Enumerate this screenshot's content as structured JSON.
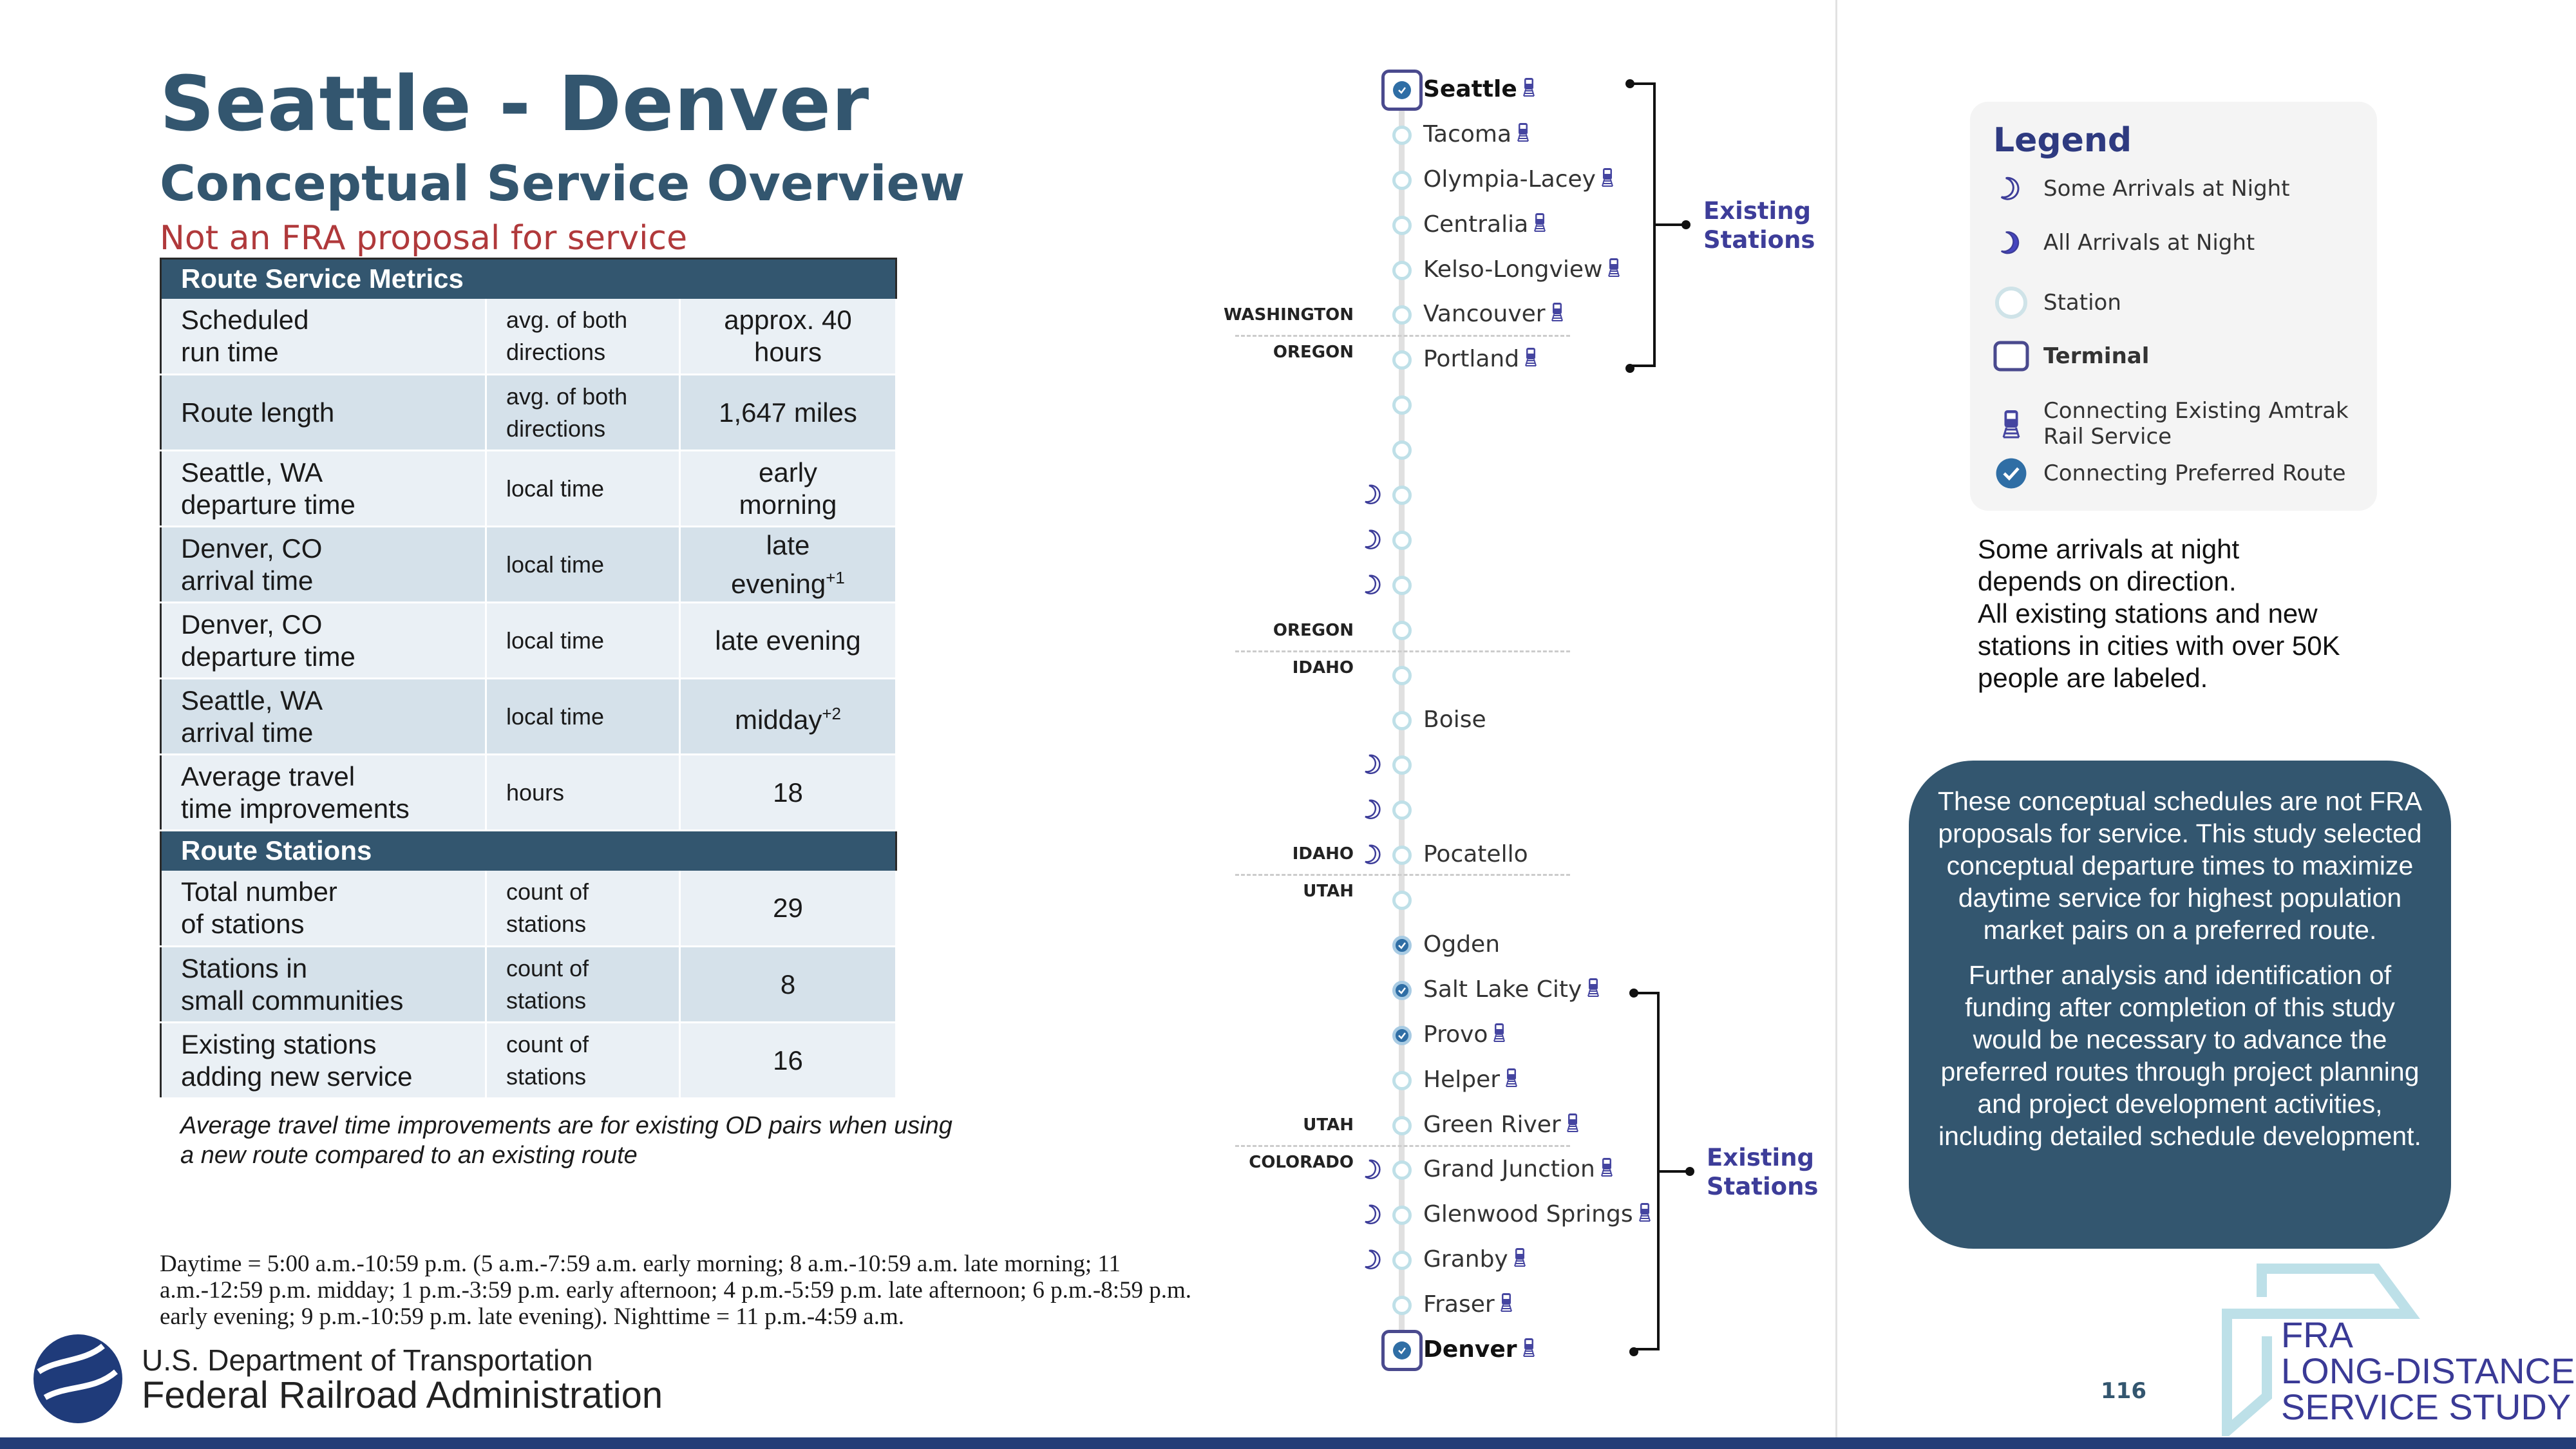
{
  "header": {
    "title": "Seattle - Denver",
    "subtitle": "Conceptual Service Overview",
    "disclaimer": "Not an FRA proposal for service"
  },
  "table": {
    "sections": [
      {
        "heading": "Route Service Metrics",
        "rows": [
          {
            "metric": "Scheduled\nrun time",
            "unit": "avg. of both\ndirections",
            "value": "approx. 40\nhours",
            "sup": ""
          },
          {
            "metric": "Route length",
            "unit": "avg. of both\ndirections",
            "value": "1,647 miles",
            "sup": ""
          },
          {
            "metric": "Seattle, WA\ndeparture time",
            "unit": "local time",
            "value": "early\nmorning",
            "sup": ""
          },
          {
            "metric": "Denver, CO\narrival time",
            "unit": "local time",
            "value": "late\nevening",
            "sup": "+1"
          },
          {
            "metric": "Denver, CO\ndeparture time",
            "unit": "local time",
            "value": "late evening",
            "sup": ""
          },
          {
            "metric": "Seattle, WA\narrival time",
            "unit": "local time",
            "value": "midday",
            "sup": "+2"
          },
          {
            "metric": "Average travel\ntime improvements",
            "unit": "hours",
            "value": "18",
            "sup": ""
          }
        ]
      },
      {
        "heading": "Route Stations",
        "rows": [
          {
            "metric": "Total number\nof stations",
            "unit": "count of\nstations",
            "value": "29",
            "sup": ""
          },
          {
            "metric": "Stations in\nsmall communities",
            "unit": "count of\nstations",
            "value": "8",
            "sup": ""
          },
          {
            "metric": "Existing stations\nadding new service",
            "unit": "count of\nstations",
            "value": "16",
            "sup": ""
          }
        ]
      }
    ],
    "footnote": "Average travel time improvements are for existing OD pairs when using a new route compared to an existing route"
  },
  "daytime_note": "Daytime = 5:00 a.m.-10:59 p.m. (5 a.m.-7:59 a.m. early morning; 8 a.m.-10:59 a.m. late morning; 11 a.m.-12:59 p.m. midday; 1 p.m.-3:59 p.m. early afternoon; 4 p.m.-5:59 p.m. late afternoon; 6 p.m.-8:59 p.m. early evening; 9 p.m.-10:59 p.m. late evening).  Nighttime = 11 p.m.-4:59 a.m.",
  "agency": {
    "line1": "U.S. Department of Transportation",
    "line2": "Federal Railroad Administration"
  },
  "route": {
    "stations": [
      {
        "name": "Seattle",
        "terminal": true,
        "preferred": true,
        "amtrak": true,
        "night": ""
      },
      {
        "name": "Tacoma",
        "amtrak": true,
        "night": ""
      },
      {
        "name": "Olympia-Lacey",
        "amtrak": true,
        "night": ""
      },
      {
        "name": "Centralia",
        "amtrak": true,
        "night": ""
      },
      {
        "name": "Kelso-Longview",
        "amtrak": true,
        "night": ""
      },
      {
        "name": "Vancouver",
        "amtrak": true,
        "night": ""
      },
      {
        "name": "Portland",
        "amtrak": true,
        "night": ""
      },
      {
        "name": "",
        "night": ""
      },
      {
        "name": "",
        "night": ""
      },
      {
        "name": "",
        "night": "some"
      },
      {
        "name": "",
        "night": "some"
      },
      {
        "name": "",
        "night": "some"
      },
      {
        "name": "",
        "night": ""
      },
      {
        "name": "",
        "night": ""
      },
      {
        "name": "Boise",
        "night": ""
      },
      {
        "name": "",
        "night": "some"
      },
      {
        "name": "",
        "night": "some"
      },
      {
        "name": "Pocatello",
        "night": "some"
      },
      {
        "name": "",
        "night": ""
      },
      {
        "name": "Ogden",
        "preferred": true,
        "night": ""
      },
      {
        "name": "Salt Lake City",
        "preferred": true,
        "amtrak": true,
        "night": ""
      },
      {
        "name": "Provo",
        "preferred": true,
        "amtrak": true,
        "night": ""
      },
      {
        "name": "Helper",
        "amtrak": true,
        "night": ""
      },
      {
        "name": "Green River",
        "amtrak": true,
        "night": ""
      },
      {
        "name": "Grand Junction",
        "amtrak": true,
        "night": "some"
      },
      {
        "name": "Glenwood Springs",
        "amtrak": true,
        "night": "some"
      },
      {
        "name": "Granby",
        "amtrak": true,
        "night": "some"
      },
      {
        "name": "Fraser",
        "amtrak": true,
        "night": ""
      },
      {
        "name": "Denver",
        "terminal": true,
        "preferred": true,
        "amtrak": true,
        "night": ""
      }
    ],
    "state_borders": [
      {
        "above": "WASHINGTON",
        "below": "OREGON"
      },
      {
        "above": "OREGON",
        "below": "IDAHO"
      },
      {
        "above": "IDAHO",
        "below": "UTAH"
      },
      {
        "above": "UTAH",
        "below": "COLORADO"
      }
    ],
    "brackets": [
      {
        "label": "Existing\nStations"
      },
      {
        "label": "Existing\nStations"
      }
    ]
  },
  "legend": {
    "title": "Legend",
    "items": [
      {
        "icon": "crescent-moon-outline-icon",
        "label": "Some Arrivals at Night"
      },
      {
        "icon": "crescent-moon-filled-icon",
        "label": "All Arrivals at Night"
      },
      {
        "icon": "station-circle-icon",
        "label": "Station"
      },
      {
        "icon": "terminal-square-icon",
        "label": "Terminal"
      },
      {
        "icon": "train-icon",
        "label": "Connecting Existing Amtrak\nRail Service"
      },
      {
        "icon": "check-circle-icon",
        "label": "Connecting Preferred Route"
      }
    ]
  },
  "note": "Some arrivals at night\ndepends on direction.\nAll existing stations and new\nstations in cities with over 50K\npeople are labeled.",
  "info_box": {
    "paragraphs": [
      "These conceptual schedules are not FRA proposals for service. This study selected conceptual departure times to maximize daytime service for highest population market pairs on a preferred route.",
      "Further analysis and identification of funding after completion of this study would be necessary to advance the preferred routes through project planning and project development activities, including detailed schedule development."
    ]
  },
  "page_number": "116",
  "study_logo": {
    "line1": "FRA",
    "line2": "LONG-DISTANCE",
    "line3": "SERVICE STUDY"
  },
  "colors": {
    "primary": "#33566f",
    "accent_red": "#b0393b",
    "purple": "#3d3d99",
    "bar": "#243d77"
  }
}
